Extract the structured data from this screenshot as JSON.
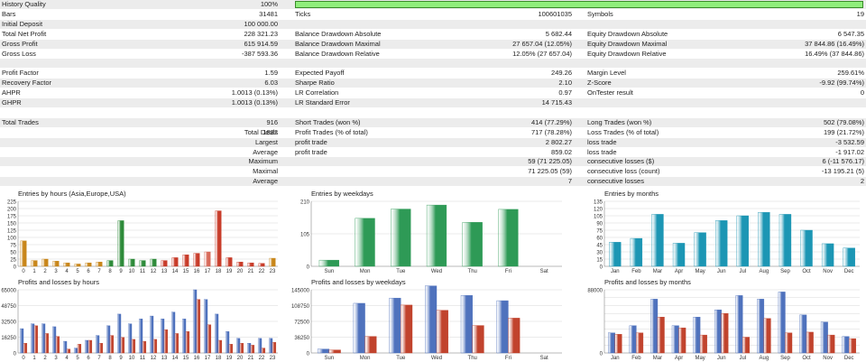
{
  "report": {
    "history_quality": {
      "label": "History Quality",
      "value": "100%",
      "fill": 1.0
    },
    "rows": [
      [
        [
          "Bars",
          "31481"
        ],
        [
          "Ticks",
          "100601035"
        ],
        [
          "Symbols",
          "19"
        ]
      ],
      [
        [
          "Initial Deposit",
          "100 000.00"
        ],
        null,
        null
      ],
      [
        [
          "Total Net Profit",
          "228 321.23"
        ],
        [
          "Balance Drawdown Absolute",
          "5 682.44"
        ],
        [
          "Equity Drawdown Absolute",
          "6 547.35"
        ]
      ],
      [
        [
          "Gross Profit",
          "615 914.59"
        ],
        [
          "Balance Drawdown Maximal",
          "27 657.04 (12.05%)"
        ],
        [
          "Equity Drawdown Maximal",
          "37 844.86 (16.49%)"
        ]
      ],
      [
        [
          "Gross Loss",
          "-387 593.36"
        ],
        [
          "Balance Drawdown Relative",
          "12.05% (27 657.04)"
        ],
        [
          "Equity Drawdown Relative",
          "16.49% (37 844.86)"
        ]
      ],
      null,
      [
        [
          "Profit Factor",
          "1.59"
        ],
        [
          "Expected Payoff",
          "249.26"
        ],
        [
          "Margin Level",
          "259.61%"
        ]
      ],
      [
        [
          "Recovery Factor",
          "6.03"
        ],
        [
          "Sharpe Ratio",
          "2.10"
        ],
        [
          "Z-Score",
          "-9.92 (99.74%)"
        ]
      ],
      [
        [
          "AHPR",
          "1.0013 (0.13%)"
        ],
        [
          "LR Correlation",
          "0.97"
        ],
        [
          "OnTester result",
          "0"
        ]
      ],
      [
        [
          "GHPR",
          "1.0013 (0.13%)"
        ],
        [
          "LR Standard Error",
          "14 715.43"
        ],
        null
      ],
      null,
      [
        [
          "Total Trades",
          "916"
        ],
        [
          "Short Trades (won %)",
          "414 (77.29%)"
        ],
        [
          "Long Trades (won %)",
          "502 (79.08%)"
        ]
      ],
      [
        [
          "Total Deals",
          "1832"
        ],
        [
          "Profit Trades (% of total)",
          "717 (78.28%)"
        ],
        [
          "Loss Trades (% of total)",
          "199 (21.72%)"
        ]
      ],
      [
        [
          "Largest",
          ""
        ],
        [
          "profit trade",
          "2 802.27"
        ],
        [
          "loss trade",
          "-3 532.59"
        ]
      ],
      [
        [
          "Average",
          ""
        ],
        [
          "profit trade",
          "859.02"
        ],
        [
          "loss trade",
          "-1 917.02"
        ]
      ],
      [
        [
          "Maximum",
          ""
        ],
        [
          "",
          "59 (71 225.05)"
        ],
        [
          "consecutive losses ($)",
          "6 (-11 576.17)"
        ]
      ],
      [
        [
          "Maximal",
          ""
        ],
        [
          "",
          "71 225.05 (59)"
        ],
        [
          "consecutive loss (count)",
          "-13 195.21 (5)"
        ]
      ],
      [
        [
          "Average",
          ""
        ],
        [
          "",
          "7"
        ],
        [
          "consecutive losses",
          "2"
        ]
      ]
    ],
    "right_aligned_labels": [
      13,
      14,
      15,
      16,
      17
    ]
  },
  "chart_data": [
    {
      "type": "bar",
      "title": "Entries by hours (Asia,Europe,USA)",
      "categories": [
        "0",
        "1",
        "2",
        "3",
        "4",
        "5",
        "6",
        "7",
        "8",
        "9",
        "10",
        "11",
        "12",
        "13",
        "14",
        "15",
        "16",
        "17",
        "18",
        "19",
        "20",
        "21",
        "22",
        "23"
      ],
      "values": [
        88,
        20,
        25,
        18,
        12,
        8,
        12,
        15,
        20,
        158,
        25,
        20,
        25,
        20,
        30,
        40,
        45,
        50,
        192,
        30,
        15,
        12,
        10,
        28
      ],
      "ylim": [
        0,
        225
      ],
      "yticks": [
        0,
        25,
        50,
        75,
        100,
        125,
        150,
        175,
        200,
        225
      ],
      "colors": [
        "#c8861a",
        "#c8861a",
        "#c8861a",
        "#c8861a",
        "#c8861a",
        "#c8861a",
        "#c8861a",
        "#c8861a",
        "#2e8b3a",
        "#2e8b3a",
        "#2e8b3a",
        "#2e8b3a",
        "#2e8b3a",
        "#c83c2a",
        "#c83c2a",
        "#c83c2a",
        "#c83c2a",
        "#d86a5a",
        "#c83c2a",
        "#c83c2a",
        "#c83c2a",
        "#c83c2a",
        "#c83c2a",
        "#c8861a"
      ],
      "grid": true
    },
    {
      "type": "bar",
      "title": "Entries by weekdays",
      "categories": [
        "Sun",
        "Mon",
        "Tue",
        "Wed",
        "Thu",
        "Fri",
        "Sat"
      ],
      "values": [
        20,
        155,
        185,
        198,
        142,
        184,
        0
      ],
      "ylim": [
        0,
        210
      ],
      "yticks": [
        0,
        105,
        210
      ],
      "colors": [
        "#2e9a56"
      ],
      "grid": true
    },
    {
      "type": "bar",
      "title": "Entries by months",
      "categories": [
        "Jan",
        "Feb",
        "Mar",
        "Apr",
        "May",
        "Jun",
        "Jul",
        "Aug",
        "Sep",
        "Oct",
        "Nov",
        "Dec"
      ],
      "values": [
        50,
        58,
        108,
        48,
        70,
        95,
        105,
        112,
        108,
        75,
        47,
        38
      ],
      "ylim": [
        0,
        135
      ],
      "yticks": [
        0,
        15,
        30,
        45,
        60,
        75,
        90,
        105,
        120,
        135
      ],
      "colors": [
        "#1c96b4"
      ],
      "grid": true
    },
    {
      "type": "bar",
      "title": "Profits and losses by hours",
      "categories": [
        "0",
        "1",
        "2",
        "3",
        "4",
        "5",
        "6",
        "7",
        "8",
        "9",
        "10",
        "11",
        "12",
        "13",
        "14",
        "15",
        "16",
        "17",
        "18",
        "19",
        "20",
        "21",
        "22",
        "23"
      ],
      "series": [
        {
          "values": [
            25000,
            30000,
            30000,
            27000,
            12000,
            5000,
            13000,
            18000,
            28000,
            40000,
            30000,
            35000,
            38000,
            35000,
            42000,
            35000,
            65000,
            55000,
            40000,
            22000,
            15000,
            10000,
            15000,
            15000
          ]
        },
        {
          "values": [
            10000,
            28000,
            20000,
            17000,
            4000,
            9000,
            13000,
            10000,
            18000,
            16000,
            14000,
            12000,
            14000,
            24000,
            20000,
            22000,
            55000,
            29000,
            13000,
            9000,
            10000,
            8000,
            5000,
            11000
          ]
        }
      ],
      "ylim": [
        0,
        65000
      ],
      "yticks": [
        0,
        16250,
        32500,
        48750,
        65000
      ],
      "yticklabels": [
        "0",
        "16250",
        "32500",
        "48750",
        "65000"
      ],
      "colors": [
        "#4f72bd",
        "#c1432d"
      ],
      "grid": true
    },
    {
      "type": "bar",
      "title": "Profits and losses by weekdays",
      "categories": [
        "Sun",
        "Mon",
        "Tue",
        "Wed",
        "Thu",
        "Fri",
        "Sat"
      ],
      "series": [
        {
          "values": [
            9000,
            114000,
            126000,
            154000,
            132000,
            120000,
            0
          ]
        },
        {
          "values": [
            7000,
            38000,
            110000,
            98000,
            63000,
            80000,
            0
          ]
        }
      ],
      "ylim": [
        0,
        145000
      ],
      "yticks": [
        0,
        36250,
        72500,
        108750,
        145000
      ],
      "yticklabels": [
        "0",
        "36250",
        "72500",
        "108750",
        "145000"
      ],
      "colors": [
        "#4f72bd",
        "#c1432d"
      ],
      "grid": true
    },
    {
      "type": "bar",
      "title": "Profits and losses by months",
      "categories": [
        "Jan",
        "Feb",
        "Mar",
        "Apr",
        "May",
        "Jun",
        "Jul",
        "Aug",
        "Sep",
        "Oct",
        "Nov",
        "Dec"
      ],
      "series": [
        {
          "values": [
            28000,
            38000,
            75000,
            38000,
            50000,
            60000,
            80000,
            75000,
            85000,
            53000,
            43000,
            23000
          ]
        },
        {
          "values": [
            26000,
            28000,
            50000,
            35000,
            25000,
            55000,
            22000,
            48000,
            28000,
            29000,
            25000,
            20000
          ]
        }
      ],
      "ylim": [
        0,
        88000
      ],
      "yticks": [
        0,
        11000,
        22000,
        33000,
        44000,
        55000,
        66000,
        77000,
        88000
      ],
      "yticklabels": [
        "0",
        "",
        "",
        "",
        "",
        "",
        "",
        "",
        "88000"
      ],
      "colors": [
        "#4f72bd",
        "#c1432d"
      ],
      "grid": true
    }
  ]
}
